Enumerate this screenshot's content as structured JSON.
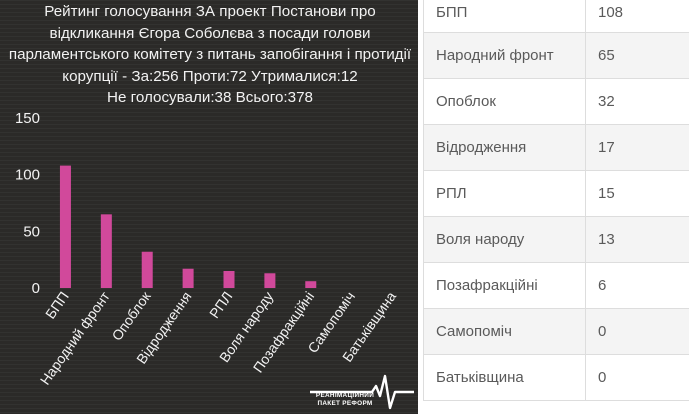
{
  "chart_data": {
    "type": "bar",
    "title_lines": [
      "Рейтинг голосування ЗА проект Постанови про",
      "відкликання Єгора Соболєва з посади голови",
      "парламентського комітету з питань запобігання і протидії",
      "корупції - За:256 Проти:72 Утрималися:12",
      "Не голосували:38 Всього:378"
    ],
    "categories": [
      "БПП",
      "Народний фронт",
      "Опоблок",
      "Відродження",
      "РПЛ",
      "Воля народу",
      "Позафракційні",
      "Самопоміч",
      "Батьківщина"
    ],
    "values": [
      108,
      65,
      32,
      17,
      15,
      13,
      6,
      0,
      0
    ],
    "y_ticks": [
      0,
      50,
      100,
      150
    ],
    "ylim": [
      0,
      150
    ],
    "xlabel": "",
    "ylabel": "",
    "bar_color": "#d1499b",
    "background_color": "#2b2a28",
    "text_color": "#f2f2f2",
    "grid": false
  },
  "logo": {
    "line1": "РЕАНІМАЦІЙНИЙ",
    "line2": "ПАКЕТ РЕФОРМ"
  },
  "table": {
    "rows": [
      {
        "party": "БПП",
        "votes": "108"
      },
      {
        "party": "Народний фронт",
        "votes": "65"
      },
      {
        "party": "Опоблок",
        "votes": "32"
      },
      {
        "party": "Відродження",
        "votes": "17"
      },
      {
        "party": "РПЛ",
        "votes": "15"
      },
      {
        "party": "Воля народу",
        "votes": "13"
      },
      {
        "party": "Позафракційні",
        "votes": "6"
      },
      {
        "party": "Самопоміч",
        "votes": "0"
      },
      {
        "party": "Батьківщина",
        "votes": "0"
      }
    ]
  }
}
